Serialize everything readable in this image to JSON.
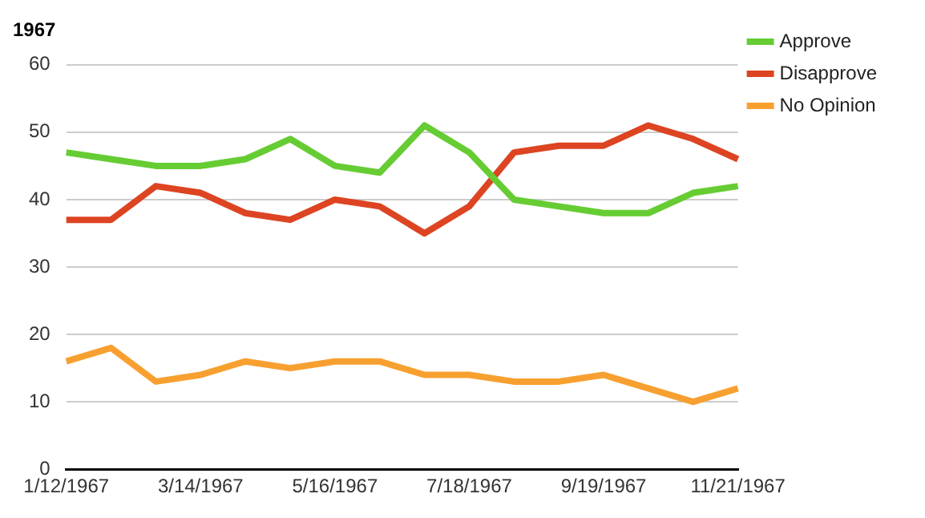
{
  "chart_data": {
    "type": "line",
    "title": "1967",
    "categories": [
      "1/12/1967",
      null,
      null,
      "3/14/1967",
      null,
      null,
      "5/16/1967",
      null,
      null,
      "7/18/1967",
      null,
      null,
      "9/19/1967",
      null,
      null,
      "11/21/1967"
    ],
    "series": [
      {
        "name": "Approve",
        "color": "#66cc33",
        "values": [
          47,
          46,
          45,
          45,
          46,
          49,
          45,
          44,
          51,
          47,
          40,
          39,
          38,
          38,
          41,
          42
        ]
      },
      {
        "name": "Disapprove",
        "color": "#dd4422",
        "values": [
          37,
          37,
          42,
          41,
          38,
          37,
          40,
          39,
          35,
          39,
          47,
          48,
          48,
          51,
          49,
          46
        ]
      },
      {
        "name": "No Opinion",
        "color": "#f7a030",
        "values": [
          16,
          18,
          13,
          14,
          16,
          15,
          16,
          16,
          14,
          14,
          13,
          13,
          14,
          12,
          10,
          12
        ]
      }
    ],
    "ylim": [
      0,
      60
    ],
    "yticks": [
      0,
      10,
      20,
      30,
      40,
      50,
      60
    ],
    "grid": "y",
    "legend": "right",
    "marker": "none",
    "line_style": "solid"
  }
}
